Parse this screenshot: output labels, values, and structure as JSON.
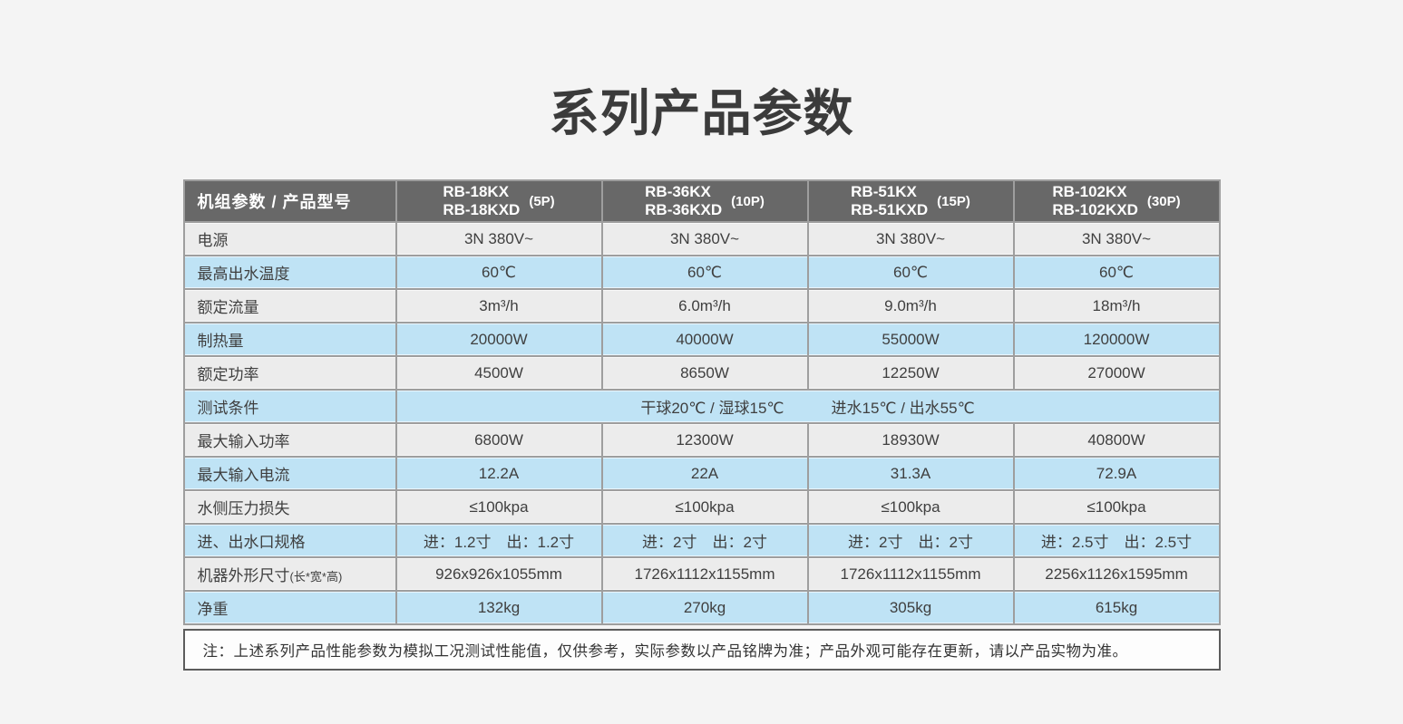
{
  "title": "系列产品参数",
  "colors": {
    "page_background": "#f4f4f4",
    "header_background": "#686868",
    "row_gray": "#ececec",
    "row_blue": "#bfe3f5",
    "grid_line": "#9e9e9e",
    "text": "#3f3f3f",
    "note_border": "#5c5c5c"
  },
  "table": {
    "header": {
      "label": "机组参数 / 产品型号",
      "columns": [
        {
          "model_line1": "RB-18KX",
          "model_line2": "RB-18KXD",
          "power": "(5P)"
        },
        {
          "model_line1": "RB-36KX",
          "model_line2": "RB-36KXD",
          "power": "(10P)"
        },
        {
          "model_line1": "RB-51KX",
          "model_line2": "RB-51KXD",
          "power": "(15P)"
        },
        {
          "model_line1": "RB-102KX",
          "model_line2": "RB-102KXD",
          "power": "(30P)"
        }
      ]
    },
    "rows": [
      {
        "label": "电源",
        "tone": "gray",
        "values": [
          "3N 380V~",
          "3N 380V~",
          "3N 380V~",
          "3N 380V~"
        ]
      },
      {
        "label": "最高出水温度",
        "tone": "blue",
        "values": [
          "60℃",
          "60℃",
          "60℃",
          "60℃"
        ]
      },
      {
        "label": "额定流量",
        "tone": "gray",
        "values": [
          "3m³/h",
          "6.0m³/h",
          "9.0m³/h",
          "18m³/h"
        ]
      },
      {
        "label": "制热量",
        "tone": "blue",
        "values": [
          "20000W",
          "40000W",
          "55000W",
          "120000W"
        ]
      },
      {
        "label": "额定功率",
        "tone": "gray",
        "values": [
          "4500W",
          "8650W",
          "12250W",
          "27000W"
        ]
      },
      {
        "label": "测试条件",
        "tone": "blue",
        "merged_parts": [
          "干球20℃ / 湿球15℃",
          "进水15℃ / 出水55℃"
        ]
      },
      {
        "label": "最大输入功率",
        "tone": "gray",
        "values": [
          "6800W",
          "12300W",
          "18930W",
          "40800W"
        ]
      },
      {
        "label": "最大输入电流",
        "tone": "blue",
        "values": [
          "12.2A",
          "22A",
          "31.3A",
          "72.9A"
        ]
      },
      {
        "label": "水侧压力损失",
        "tone": "gray",
        "values": [
          "≤100kpa",
          "≤100kpa",
          "≤100kpa",
          "≤100kpa"
        ]
      },
      {
        "label": "进、出水口规格",
        "tone": "blue",
        "values": [
          "进：1.2寸　出：1.2寸",
          "进：2寸　出：2寸",
          "进：2寸　出：2寸",
          "进：2.5寸　出：2.5寸"
        ]
      },
      {
        "label": "机器外形尺寸",
        "label_suffix": "(长*宽*高)",
        "tone": "gray",
        "values": [
          "926x926x1055mm",
          "1726x1112x1155mm",
          "1726x1112x1155mm",
          "2256x1126x1595mm"
        ]
      },
      {
        "label": "净重",
        "tone": "blue",
        "values": [
          "132kg",
          "270kg",
          "305kg",
          "615kg"
        ]
      }
    ],
    "note": "注：上述系列产品性能参数为模拟工况测试性能值，仅供参考，实际参数以产品铭牌为准；产品外观可能存在更新，请以产品实物为准。"
  }
}
